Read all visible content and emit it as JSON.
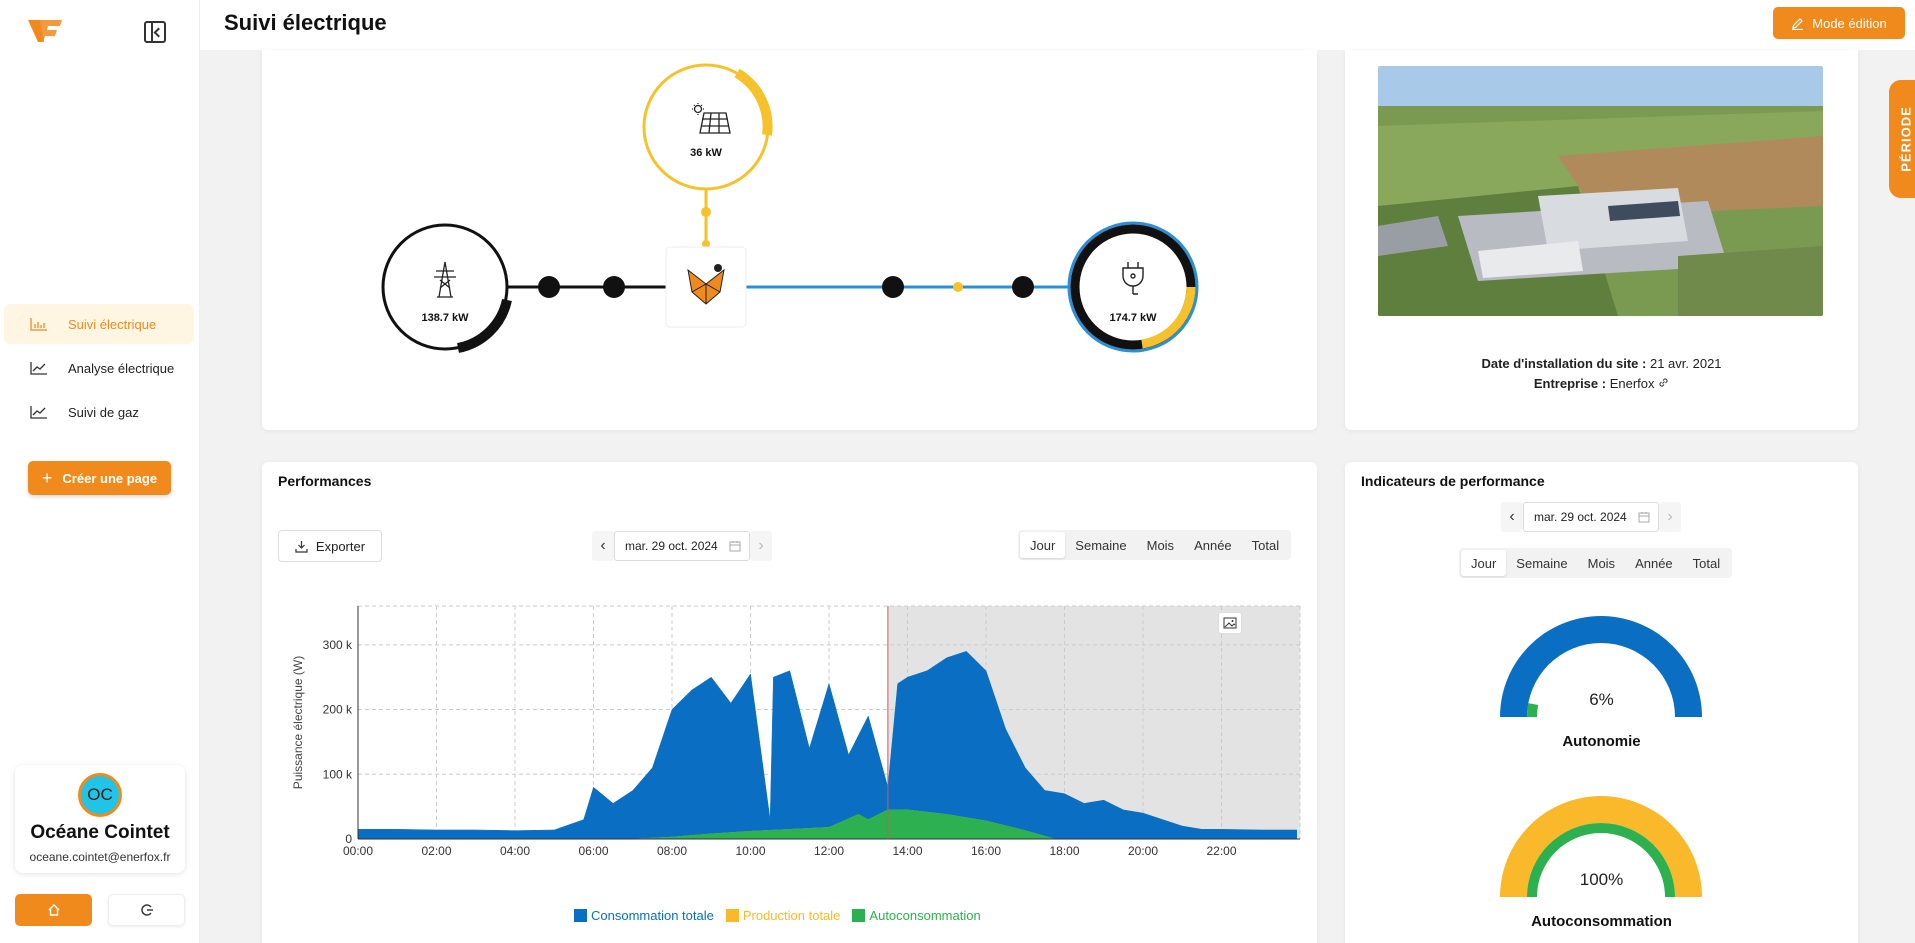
{
  "app": {
    "logo_text": "VF"
  },
  "header": {
    "title": "Suivi électrique",
    "edit_label": "Mode édition"
  },
  "periode_tab": "PÉRIODE",
  "sidebar": {
    "items": [
      {
        "label": "Suivi électrique",
        "active": true
      },
      {
        "label": "Analyse électrique",
        "active": false
      },
      {
        "label": "Suivi de gaz",
        "active": false
      }
    ],
    "create_label": "Créer une page"
  },
  "user": {
    "initials": "OC",
    "name": "Océane Cointet",
    "email": "oceane.cointet@enerfox.fr"
  },
  "flow": {
    "solar_value": "36 kW",
    "grid_value": "138.7 kW",
    "load_value": "174.7 kW"
  },
  "site": {
    "install_label": "Date d'installation du site :",
    "install_value": "21 avr. 2021",
    "company_label": "Entreprise :",
    "company_value": "Enerfox"
  },
  "performances": {
    "title": "Performances",
    "export_label": "Exporter",
    "date": "mar. 29 oct. 2024",
    "periods": [
      "Jour",
      "Semaine",
      "Mois",
      "Année",
      "Total"
    ],
    "active_period": "Jour"
  },
  "kpi": {
    "title": "Indicateurs de performance",
    "date": "mar. 29 oct. 2024",
    "periods": [
      "Jour",
      "Semaine",
      "Mois",
      "Année",
      "Total"
    ],
    "autonomie": {
      "label": "Autonomie",
      "value": "6%",
      "fraction": 0.06
    },
    "autoconsommation": {
      "label": "Autoconsommation",
      "value": "100%",
      "fraction": 1.0
    }
  },
  "chart_data": {
    "type": "area",
    "ylabel": "Puissance électrique (W)",
    "ylim": [
      0,
      360000
    ],
    "yticks": [
      "0",
      "100 k",
      "200 k",
      "300 k"
    ],
    "xticks": [
      "00:00",
      "02:00",
      "04:00",
      "06:00",
      "08:00",
      "10:00",
      "12:00",
      "14:00",
      "16:00",
      "18:00",
      "20:00",
      "22:00"
    ],
    "now_marker": "13:30",
    "series": [
      {
        "name": "Consommation totale",
        "color": "#0a6fc2",
        "x": [
          "00:00",
          "01:00",
          "02:00",
          "03:00",
          "04:00",
          "05:00",
          "05:45",
          "06:00",
          "06:30",
          "07:00",
          "07:30",
          "08:00",
          "08:30",
          "09:00",
          "09:30",
          "10:00",
          "10:30",
          "10:35",
          "11:00",
          "11:30",
          "12:00",
          "12:30",
          "13:00",
          "13:30",
          "13:45",
          "14:00",
          "14:30",
          "15:00",
          "15:30",
          "16:00",
          "16:30",
          "17:00",
          "17:30",
          "18:00",
          "18:30",
          "19:00",
          "19:30",
          "20:00",
          "20:30",
          "21:00",
          "21:30",
          "22:00",
          "23:00",
          "23:55"
        ],
        "values": [
          15000,
          15000,
          14000,
          14000,
          13000,
          14000,
          30000,
          80000,
          55000,
          75000,
          110000,
          200000,
          230000,
          250000,
          210000,
          255000,
          30000,
          250000,
          260000,
          140000,
          240000,
          130000,
          190000,
          80000,
          240000,
          250000,
          260000,
          280000,
          290000,
          260000,
          170000,
          110000,
          75000,
          70000,
          55000,
          60000,
          45000,
          40000,
          30000,
          20000,
          15000,
          15000,
          14000,
          14000
        ]
      },
      {
        "name": "Production totale",
        "color": "#f9b92b",
        "x": [
          "00:00",
          "07:00",
          "08:00",
          "09:00",
          "10:00",
          "11:00",
          "12:00",
          "12:45",
          "13:00",
          "13:30",
          "14:00",
          "15:00",
          "16:00",
          "17:00",
          "17:45",
          "23:55"
        ],
        "values": [
          0,
          0,
          3000,
          8000,
          12000,
          15000,
          18000,
          38000,
          30000,
          45000,
          45000,
          38000,
          28000,
          13000,
          0,
          0
        ]
      },
      {
        "name": "Autoconsommation",
        "color": "#2db050",
        "x": [
          "00:00",
          "07:00",
          "08:00",
          "09:00",
          "10:00",
          "11:00",
          "12:00",
          "12:45",
          "13:00",
          "13:30",
          "14:00",
          "15:00",
          "16:00",
          "17:00",
          "17:45",
          "23:55"
        ],
        "values": [
          0,
          0,
          3000,
          8000,
          12000,
          15000,
          18000,
          38000,
          30000,
          45000,
          45000,
          38000,
          28000,
          13000,
          0,
          0
        ]
      }
    ]
  }
}
